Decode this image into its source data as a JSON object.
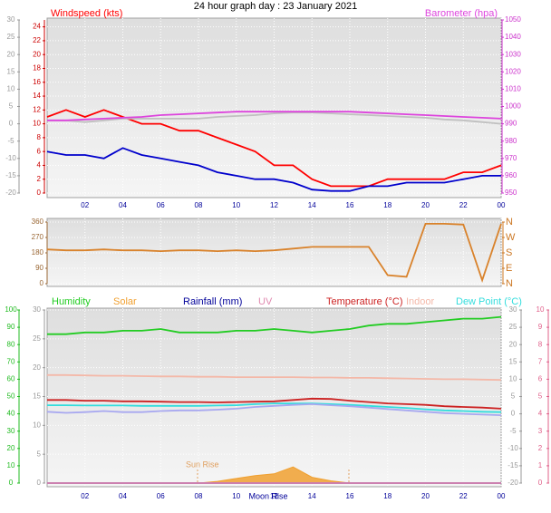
{
  "title": "24 hour graph day : 23 January 2021",
  "chart_data": [
    {
      "type": "line",
      "x": [
        0,
        1,
        2,
        3,
        4,
        5,
        6,
        7,
        8,
        9,
        10,
        11,
        12,
        13,
        14,
        15,
        16,
        17,
        18,
        19,
        20,
        21,
        22,
        23,
        24
      ],
      "xlim": [
        0,
        24
      ],
      "xticks": [
        {
          "value": 2,
          "label": "02"
        },
        {
          "value": 4,
          "label": "04"
        },
        {
          "value": 6,
          "label": "06"
        },
        {
          "value": 8,
          "label": "08"
        },
        10,
        12,
        14,
        16,
        18,
        20,
        22,
        {
          "value": 24,
          "label": "00"
        }
      ],
      "grid": true,
      "grid_axis": 1,
      "axes": [
        {
          "ylim": [
            -20,
            30
          ],
          "yticks": [
            -20,
            -15,
            -10,
            -5,
            0,
            5,
            10,
            15,
            20,
            25,
            30
          ],
          "color": "#999999"
        },
        {
          "ylim": [
            0,
            25
          ],
          "yticks": [
            0,
            2,
            4,
            6,
            8,
            10,
            12,
            14,
            16,
            18,
            20,
            22,
            24
          ],
          "color": "#cc0000"
        },
        {
          "ylim": [
            950,
            1050
          ],
          "yticks": [
            950,
            960,
            970,
            980,
            990,
            1000,
            1010,
            1020,
            1030,
            1040,
            1050
          ],
          "color": "#cc33cc"
        }
      ],
      "series": [
        {
          "name": "Windspeed (kts)",
          "color": "#ff0000",
          "axis": 1,
          "values": [
            11,
            12,
            11,
            12,
            11,
            10,
            10,
            9,
            9,
            8,
            7,
            6,
            4,
            4,
            2,
            1,
            1,
            1,
            2,
            2,
            2,
            2,
            3,
            3,
            4
          ]
        },
        {
          "color": "#0000cc",
          "axis": 1,
          "values": [
            6,
            5.5,
            5.5,
            5,
            6.5,
            5.5,
            5,
            4.5,
            4,
            3,
            2.5,
            2,
            2,
            1.5,
            0.5,
            0.3,
            0.3,
            1,
            1,
            1.5,
            1.5,
            1.5,
            2,
            2.5,
            2.5
          ]
        },
        {
          "color": "#c0c0c0",
          "axis": 2,
          "values": [
            992,
            992,
            991,
            992,
            993,
            993,
            993,
            993,
            993,
            994,
            994.5,
            995,
            996,
            996.5,
            996.5,
            996,
            995.5,
            995,
            994.5,
            994,
            993.5,
            992.5,
            992,
            991,
            990
          ]
        },
        {
          "name": "Barometer (hpa)",
          "color": "#dd44dd",
          "axis": 2,
          "values": [
            992,
            992,
            992.5,
            993,
            993.5,
            994,
            995,
            995.5,
            996,
            996.5,
            997,
            997,
            997,
            997,
            997,
            997,
            997,
            996.5,
            996,
            995.5,
            995,
            994.5,
            994,
            993.5,
            993
          ]
        }
      ]
    },
    {
      "type": "line",
      "x": [
        0,
        1,
        2,
        3,
        4,
        5,
        6,
        7,
        8,
        9,
        10,
        11,
        12,
        13,
        14,
        15,
        16,
        17,
        18,
        19,
        20,
        21,
        22,
        23,
        24
      ],
      "xlim": [
        0,
        24
      ],
      "xticks": [
        {
          "value": 2,
          "label": "02"
        },
        {
          "value": 4,
          "label": "04"
        },
        {
          "value": 6,
          "label": "06"
        },
        {
          "value": 8,
          "label": "08"
        },
        10,
        12,
        14,
        16,
        18,
        20,
        22,
        {
          "value": 24,
          "label": "00"
        }
      ],
      "show_xtick_labels": false,
      "grid": true,
      "grid_axis": 0,
      "axes": [
        {
          "ylim": [
            0,
            360
          ],
          "yticks": [
            0,
            90,
            180,
            270,
            360
          ],
          "color": "#996633"
        },
        {
          "ylim": [
            0,
            360
          ],
          "yticks": [
            {
              "value": 0,
              "label": "N"
            },
            {
              "value": 90,
              "label": "E"
            },
            {
              "value": 180,
              "label": "S"
            },
            {
              "value": 270,
              "label": "W"
            },
            {
              "value": 360,
              "label": "N"
            }
          ],
          "color": "#cc7722"
        }
      ],
      "series": [
        {
          "color": "#d9822b",
          "axis": 0,
          "values": [
            200,
            195,
            195,
            200,
            195,
            195,
            190,
            195,
            195,
            190,
            195,
            190,
            195,
            205,
            215,
            215,
            215,
            215,
            50,
            40,
            350,
            350,
            345,
            20,
            350
          ]
        }
      ]
    },
    {
      "type": "line",
      "x": [
        0,
        1,
        2,
        3,
        4,
        5,
        6,
        7,
        8,
        9,
        10,
        11,
        12,
        13,
        14,
        15,
        16,
        17,
        18,
        19,
        20,
        21,
        22,
        23,
        24
      ],
      "xlim": [
        0,
        24
      ],
      "xticks": [
        {
          "value": 2,
          "label": "02"
        },
        {
          "value": 4,
          "label": "04"
        },
        {
          "value": 6,
          "label": "06"
        },
        {
          "value": 8,
          "label": "08"
        },
        10,
        12,
        14,
        16,
        18,
        20,
        22,
        {
          "value": 24,
          "label": "00"
        }
      ],
      "grid": true,
      "grid_axis": 1,
      "axes": [
        {
          "ylim": [
            0,
            100
          ],
          "yticks": [
            0,
            10,
            20,
            30,
            40,
            50,
            60,
            70,
            80,
            90,
            100
          ],
          "color": "#22bb22"
        },
        {
          "ylim": [
            0,
            30
          ],
          "yticks": [
            0,
            5,
            10,
            15,
            20,
            25,
            30
          ],
          "color": "#999999"
        },
        {
          "ylim": [
            -20,
            30
          ],
          "yticks": [
            -20,
            -15,
            -10,
            -5,
            0,
            5,
            10,
            15,
            20,
            25,
            30
          ],
          "color": "#999999"
        },
        {
          "ylim": [
            0,
            10
          ],
          "yticks": [
            0,
            1,
            2,
            3,
            4,
            5,
            6,
            7,
            8,
            9,
            10
          ],
          "color": "#e0608a"
        }
      ],
      "series": [
        {
          "name": "Humidity",
          "color": "#22cc22",
          "axis": 0,
          "values": [
            86,
            86,
            87,
            87,
            88,
            88,
            89,
            87,
            87,
            87,
            88,
            88,
            89,
            88,
            87,
            88,
            89,
            91,
            92,
            92,
            93,
            94,
            95,
            95,
            96
          ]
        },
        {
          "name": "Solar",
          "type": "area",
          "color": "#f0a030",
          "axis": 1,
          "values": [
            0,
            0,
            0,
            0,
            0,
            0,
            0,
            0,
            0,
            0.3,
            0.8,
            1.3,
            1.6,
            2.8,
            1.0,
            0.4,
            0,
            0,
            0,
            0,
            0,
            0,
            0,
            0,
            0
          ]
        },
        {
          "name": "Rainfall (mm)",
          "color": "#000099",
          "axis": 1,
          "values": [
            0,
            0,
            0,
            0,
            0,
            0,
            0,
            0,
            0,
            0,
            0,
            0,
            0,
            0,
            0,
            0,
            0,
            0,
            0,
            0,
            0,
            0,
            0,
            0,
            0
          ]
        },
        {
          "name": "UV",
          "color": "#e08ab0",
          "axis": 3,
          "values": [
            0,
            0,
            0,
            0,
            0,
            0,
            0,
            0,
            0,
            0,
            0,
            0,
            0,
            0,
            0,
            0,
            0,
            0,
            0,
            0,
            0,
            0,
            0,
            0,
            0
          ]
        },
        {
          "name": "Temperature (°C)",
          "color": "#cc2222",
          "axis": 2,
          "values": [
            4.0,
            4.0,
            3.8,
            3.8,
            3.6,
            3.6,
            3.5,
            3.4,
            3.4,
            3.3,
            3.4,
            3.5,
            3.6,
            4.0,
            4.4,
            4.3,
            3.8,
            3.4,
            3.0,
            2.8,
            2.6,
            2.2,
            2.0,
            1.8,
            1.5
          ]
        },
        {
          "name": "Indoor",
          "color": "#f4b8a8",
          "axis": 2,
          "values": [
            11.2,
            11.2,
            11.1,
            11.0,
            11.0,
            10.9,
            10.8,
            10.8,
            10.7,
            10.7,
            10.6,
            10.6,
            10.6,
            10.6,
            10.5,
            10.5,
            10.4,
            10.4,
            10.3,
            10.2,
            10.1,
            10.0,
            10.0,
            9.9,
            9.8
          ]
        },
        {
          "name": "Dew Point (°C)",
          "color": "#33dddd",
          "axis": 2,
          "values": [
            2.5,
            2.5,
            2.4,
            2.4,
            2.4,
            2.3,
            2.3,
            2.3,
            2.3,
            2.4,
            2.5,
            2.8,
            3.0,
            3.0,
            3.0,
            2.8,
            2.6,
            2.3,
            2.0,
            1.7,
            1.3,
            1.0,
            0.8,
            0.6,
            0.5
          ]
        },
        {
          "color": "#a8a8f0",
          "axis": 2,
          "values": [
            0.6,
            0.3,
            0.5,
            0.8,
            0.5,
            0.5,
            0.8,
            1.0,
            1.0,
            1.2,
            1.5,
            2.0,
            2.3,
            2.6,
            2.8,
            2.5,
            2.2,
            1.8,
            1.4,
            1.0,
            0.6,
            0.2,
            0.0,
            -0.2,
            -0.4
          ]
        }
      ],
      "annotations": [
        "Sun Rise",
        "Moon Rise"
      ]
    }
  ]
}
